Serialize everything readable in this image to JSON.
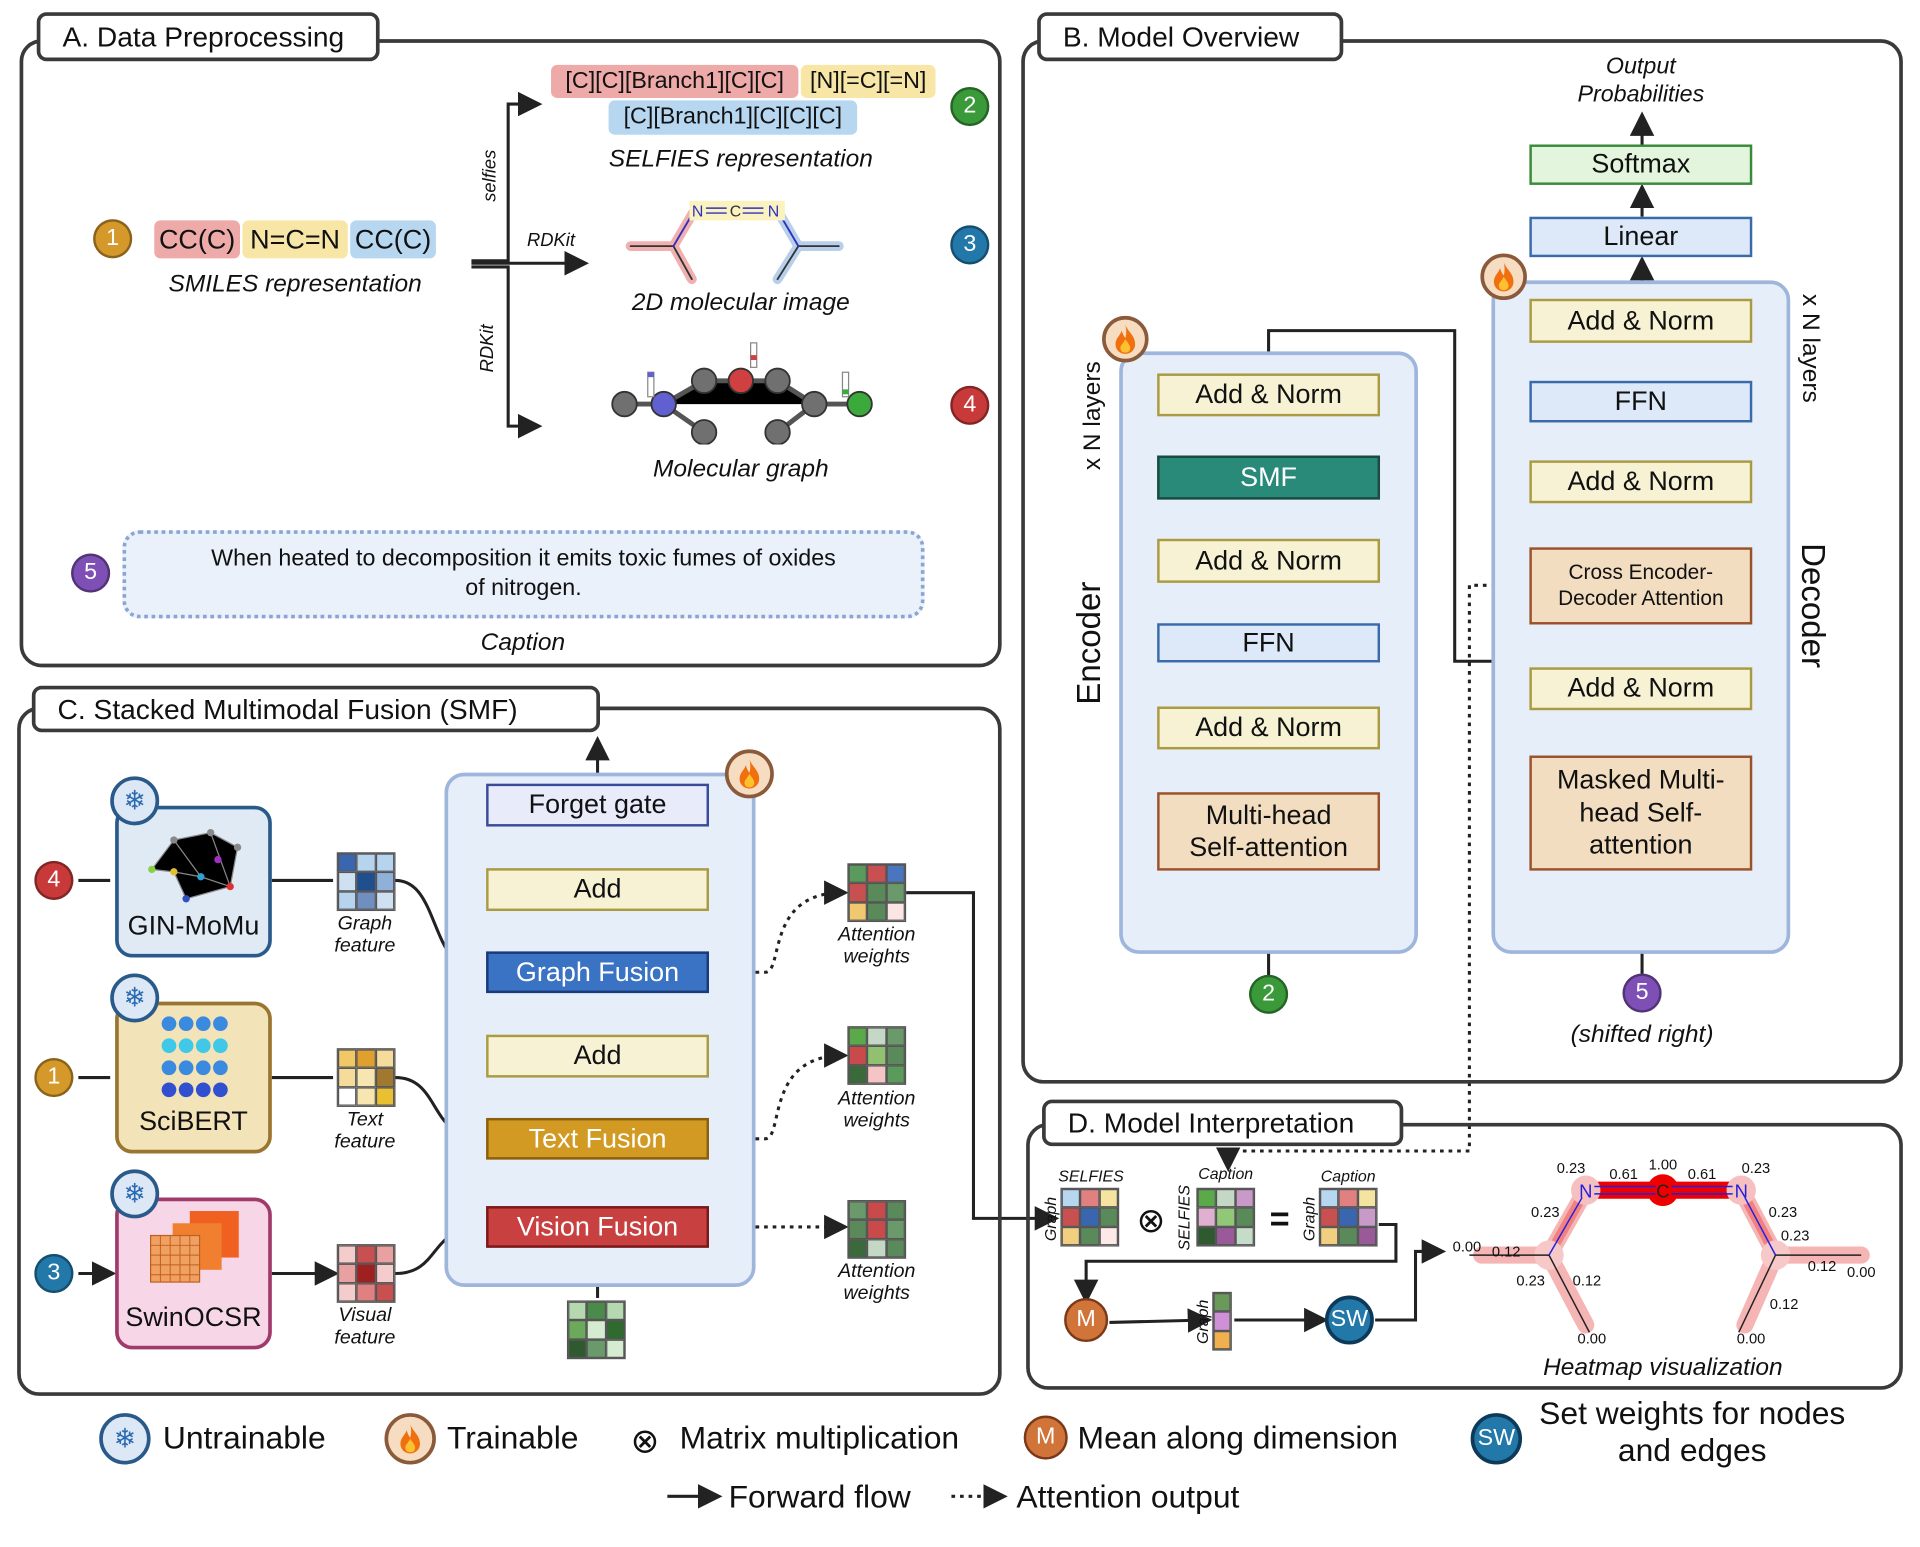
{
  "panel_a": {
    "title": "A. Data Preprocessing",
    "smiles": {
      "parts": [
        "CC(C)",
        "N=C=N",
        "CC(C)"
      ],
      "label": "SMILES representation",
      "badge": "1"
    },
    "arrow_labels": {
      "selfies": "selfies",
      "rdkit_image": "RDKit",
      "rdkit_graph": "RDKit"
    },
    "selfies": {
      "parts": [
        "[C][C][Branch1][C][C]",
        "[N][=C][=N]",
        "[C][Branch1][C][C][C]"
      ],
      "label": "SELFIES representation",
      "badge": "2"
    },
    "image": {
      "label": "2D molecular image",
      "badge": "3",
      "atoms": [
        "N",
        "C",
        "N"
      ]
    },
    "graph": {
      "label": "Molecular graph",
      "badge": "4"
    },
    "caption": {
      "text": "When heated to decomposition it emits toxic fumes of oxides of nitrogen.",
      "label": "Caption",
      "badge": "5"
    },
    "chip_colors": {
      "red": "#eeaaa8",
      "yellow": "#f7e6a6",
      "blue": "#b7d7f0"
    }
  },
  "panel_b": {
    "title": "B. Model Overview",
    "output_label": "Output Probabilities",
    "encoder": {
      "label": "Encoder",
      "repeat": "x N layers",
      "input_badge": "2",
      "blocks": [
        "Add & Norm",
        "SMF",
        "Add & Norm",
        "FFN",
        "Add & Norm",
        "Multi-head Self-attention"
      ]
    },
    "decoder": {
      "label": "Decoder",
      "repeat": "x N layers",
      "input_badge": "5",
      "input_label": "(shifted right)",
      "blocks": [
        "Softmax",
        "Linear",
        "Add & Norm",
        "FFN",
        "Add & Norm",
        "Cross Encoder-Decoder Attention",
        "Add & Norm",
        "Masked Multi-head Self-attention"
      ]
    }
  },
  "panel_c": {
    "title": "C. Stacked Multimodal Fusion (SMF)",
    "encoders": [
      {
        "name": "GIN-MoMu",
        "badge": "4",
        "feature": "Graph feature",
        "state": "untrainable"
      },
      {
        "name": "SciBERT",
        "badge": "1",
        "feature": "Text feature",
        "state": "untrainable"
      },
      {
        "name": "SwinOCSR",
        "badge": "3",
        "feature": "Visual feature",
        "state": "untrainable"
      }
    ],
    "blocks": [
      "Forget gate",
      "Add",
      "Graph Fusion",
      "Add",
      "Text Fusion",
      "Vision Fusion"
    ],
    "attention_label": "Attention weights",
    "matrices": {
      "graph_feature": [
        "#3a66b0",
        "#b7d4ee",
        "#b7d4ee",
        "#cfe0f2",
        "#1f4f8f",
        "#8fb0d8",
        "#b7d4ee",
        "#6f8fc0",
        "#cfe0f2"
      ],
      "text_feature": [
        "#f0c866",
        "#e0a030",
        "#f5dc9a",
        "#f5dc9a",
        "#f7e6b0",
        "#a07830",
        "#fff",
        "#f7e6b0",
        "#e8c030"
      ],
      "visual_feature": [
        "#f5cccc",
        "#c85050",
        "#e8a0a0",
        "#e8a0a0",
        "#a02020",
        "#f5cccc",
        "#f5cccc",
        "#e08080",
        "#c85050"
      ],
      "decoder_input": [
        "#b5d8b0",
        "#4a8a4a",
        "#b5d8b0",
        "#6aaa5a",
        "#d5ecd0",
        "#2f6a2f",
        "#2f5a2f",
        "#6a9a6a",
        "#d5ecd0"
      ],
      "attn1": [
        "#5a9a5a",
        "#c85050",
        "#4a76c0",
        "#c85050",
        "#5a8a5a",
        "#6a9a6a",
        "#f0c870",
        "#5a8a5a",
        "#fbe5e5"
      ],
      "attn2": [
        "#5aaa4a",
        "#c5d8c5",
        "#6a9a6a",
        "#c84a4a",
        "#90c070",
        "#5a8a5a",
        "#3a6a3a",
        "#f5c5c5",
        "#5a9a5a"
      ],
      "attn3": [
        "#6a9a6a",
        "#c84a4a",
        "#5a8a5a",
        "#5a8a5a",
        "#c84a4a",
        "#6a9a6a",
        "#3a6a3a",
        "#c5d8c5",
        "#5a8a5a"
      ]
    }
  },
  "panel_d": {
    "title": "D. Model Interpretation",
    "m1": {
      "top": "SELFIES",
      "side": "Graph"
    },
    "m2": {
      "top": "Caption",
      "side": "SELFIES"
    },
    "m3": {
      "top": "Caption",
      "side": "Graph"
    },
    "vector_label": "Graph",
    "multiply_symbol": "⊗",
    "equals_symbol": "=",
    "mean_symbol": "M",
    "sw_symbol": "SW",
    "heatmap_label": "Heatmap visualization",
    "atoms": [
      "N",
      "C",
      "N"
    ],
    "weights": [
      "0.23",
      "0.61",
      "1.00",
      "0.61",
      "0.23",
      "0.23",
      "0.23",
      "0.23",
      "0.00",
      "0.12",
      "0.23",
      "0.12",
      "0.12",
      "0.00",
      "0.12",
      "0.00",
      "0.00"
    ],
    "matrices": {
      "m1": [
        "#b7d7f0",
        "#e08080",
        "#f5e3a0",
        "#c85050",
        "#3a66b0",
        "#5a8a5a",
        "#f0d080",
        "#5a8a5a",
        "#fde8e8"
      ],
      "m2": [
        "#5aaa4a",
        "#c5d8c5",
        "#c89ac8",
        "#e0b0d0",
        "#90c878",
        "#5a8a5a",
        "#2f5a2f",
        "#9a5a9a",
        "#c5dcc8"
      ],
      "m3": [
        "#b7d7f0",
        "#e08080",
        "#f5e3a0",
        "#c85050",
        "#3a66b0",
        "#c89ac8",
        "#f0d080",
        "#5a8a5a",
        "#9a5a9a"
      ],
      "vector": [
        "#6a9a5a",
        "#d090d8",
        "#f0b050"
      ]
    }
  },
  "legend": {
    "untrainable": "Untrainable",
    "trainable": "Trainable",
    "matmul": "Matrix multiplication",
    "mean": "Mean along dimension",
    "sw": "Set weights for nodes and edges",
    "forward": "Forward flow",
    "attention": "Attention output"
  },
  "colors": {
    "badge1": "#d4992a",
    "badge2": "#3a9a3a",
    "badge3": "#2278a8",
    "badge4": "#c83a3a",
    "badge5": "#7e4fb5",
    "smf": "#2a8a7a",
    "graph_fusion": "#3a72c4",
    "text_fusion": "#d29a22",
    "vision_fusion": "#c84040",
    "mean": "#d0743a",
    "sw": "#2278a8"
  }
}
